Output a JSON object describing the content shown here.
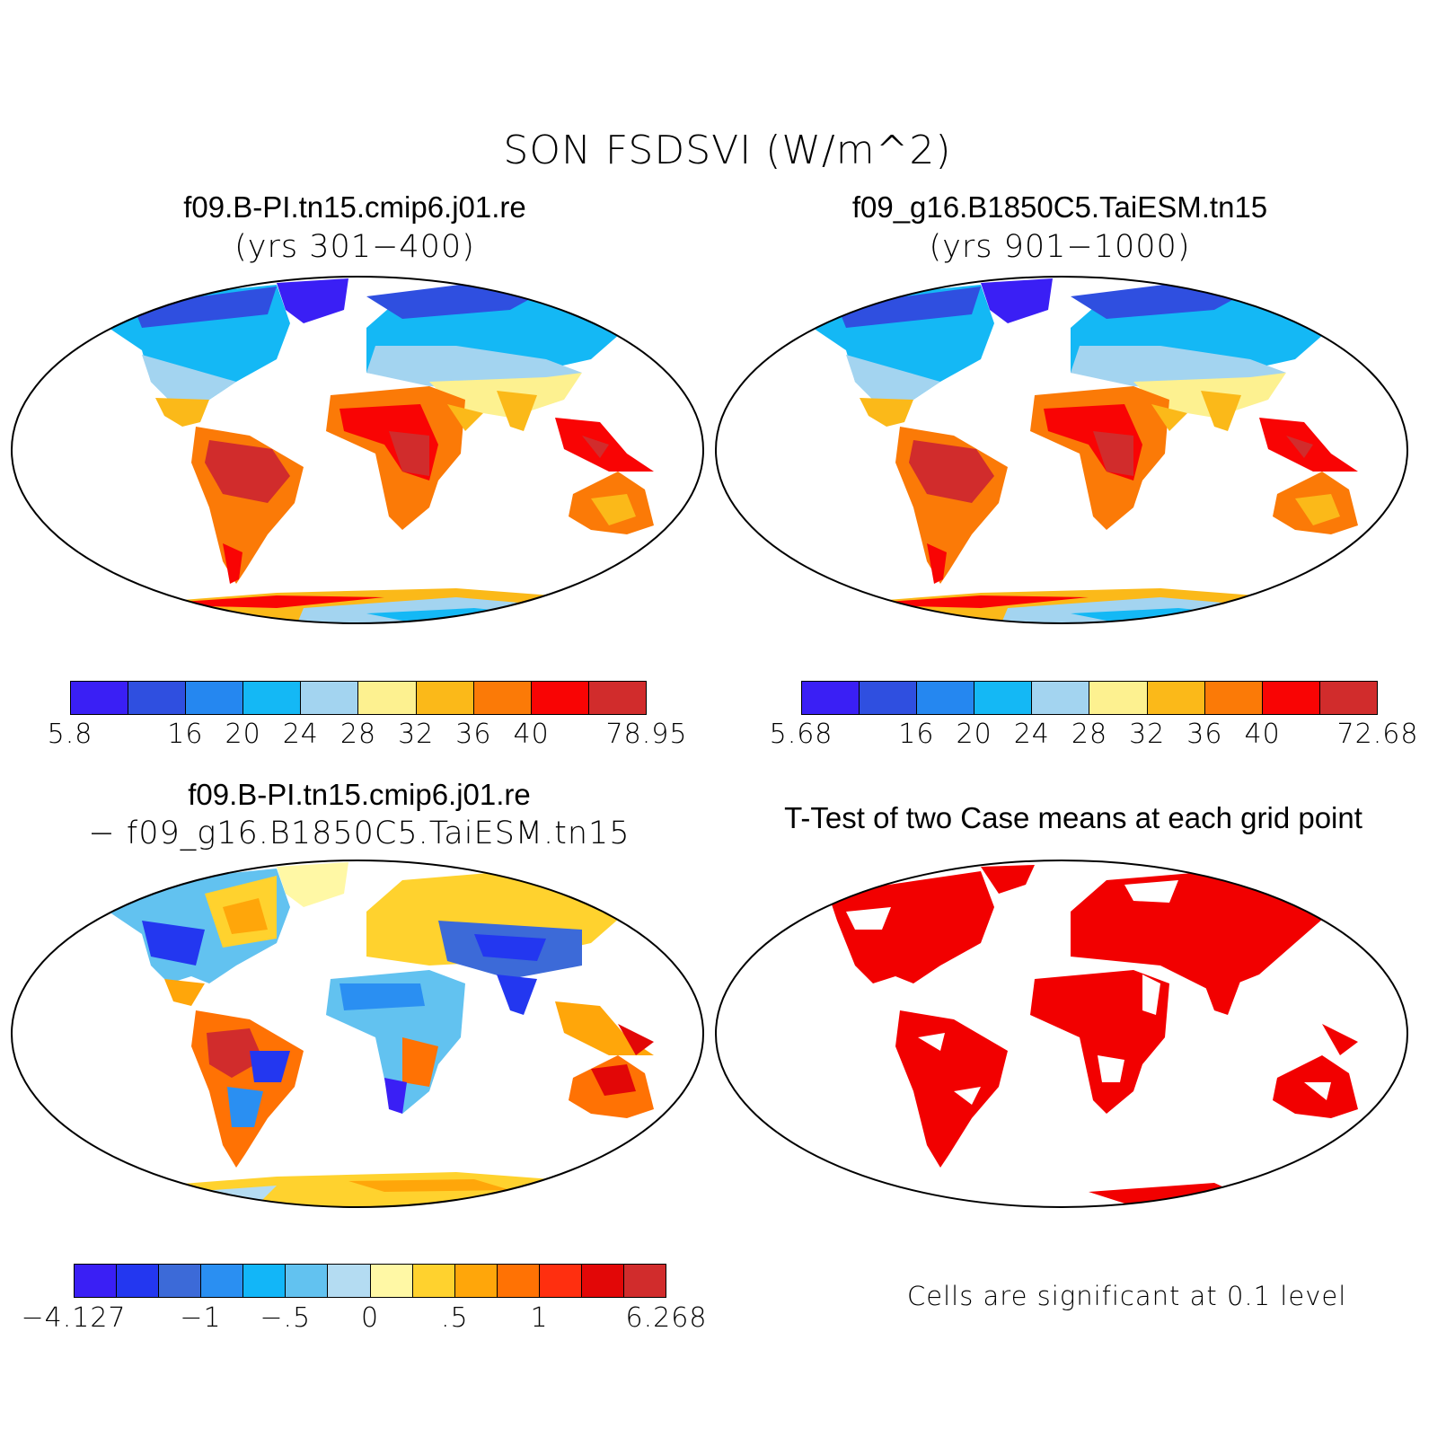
{
  "title": "SON FSDSVI (W/m^2)",
  "panels": {
    "case1": {
      "title": "f09.B-PI.tn15.cmip6.j01.re",
      "subtitle": "(yrs 301−400)",
      "colorbar": {
        "colors": [
          "#3a1ff5",
          "#2f4fe0",
          "#2587f0",
          "#14b8f5",
          "#a3d4f0",
          "#fdf190",
          "#fbb919",
          "#fb7a07",
          "#f90404",
          "#d12c2c"
        ],
        "tick_labels": [
          "5.8",
          "16",
          "20",
          "24",
          "28",
          "32",
          "36",
          "40",
          "78.95"
        ]
      }
    },
    "case2": {
      "title": "f09_g16.B1850C5.TaiESM.tn15",
      "subtitle": "(yrs 901−1000)",
      "colorbar": {
        "colors": [
          "#3a1ff5",
          "#2f4fe0",
          "#2587f0",
          "#14b8f5",
          "#a3d4f0",
          "#fdf190",
          "#fbb919",
          "#fb7a07",
          "#f90404",
          "#d12c2c"
        ],
        "tick_labels": [
          "5.68",
          "16",
          "20",
          "24",
          "28",
          "32",
          "36",
          "40",
          "72.68"
        ]
      }
    },
    "diff": {
      "title": "f09.B-PI.tn15.cmip6.j01.re",
      "subtitle": "− f09_g16.B1850C5.TaiESM.tn15",
      "colorbar": {
        "colors": [
          "#3a1ff5",
          "#2337f0",
          "#3c6ad8",
          "#2a8ff2",
          "#12b6f8",
          "#62c2f0",
          "#b4dcf2",
          "#fff8a5",
          "#ffd22e",
          "#ffa60a",
          "#ff7204",
          "#ff2f0f",
          "#e20707",
          "#d12c2c"
        ],
        "tick_labels": [
          "−4.127",
          "−1",
          "−.5",
          "0",
          ".5",
          "1",
          "6.268"
        ]
      }
    },
    "ttest": {
      "title": "T-Test of two Case means at each grid point",
      "note": "Cells are significant at 0.1 level",
      "color": "#f20000"
    }
  }
}
